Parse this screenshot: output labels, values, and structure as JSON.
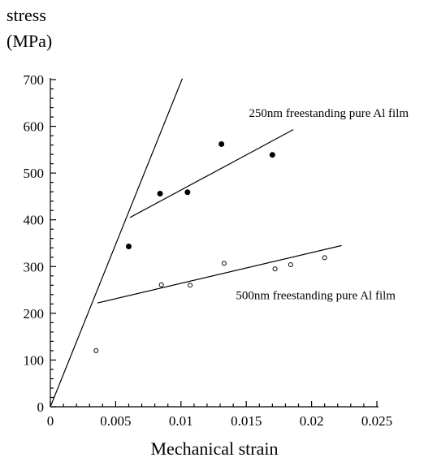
{
  "chart_data": {
    "type": "scatter",
    "xlabel": "Mechanical strain",
    "ylabel_line1": "stress",
    "ylabel_line2": "(MPa)",
    "xlim": [
      0,
      0.025
    ],
    "ylim": [
      0,
      700
    ],
    "x_ticks": [
      {
        "value": 0,
        "label": "0"
      },
      {
        "value": 0.005,
        "label": "0.005"
      },
      {
        "value": 0.01,
        "label": "0.01"
      },
      {
        "value": 0.015,
        "label": "0.015"
      },
      {
        "value": 0.02,
        "label": "0.02"
      },
      {
        "value": 0.025,
        "label": "0.025"
      }
    ],
    "y_ticks": [
      {
        "value": 0,
        "label": "0"
      },
      {
        "value": 100,
        "label": "100"
      },
      {
        "value": 200,
        "label": "200"
      },
      {
        "value": 300,
        "label": "300"
      },
      {
        "value": 400,
        "label": "400"
      },
      {
        "value": 500,
        "label": "500"
      },
      {
        "value": 600,
        "label": "600"
      },
      {
        "value": 700,
        "label": "700"
      }
    ],
    "grid": false,
    "series": [
      {
        "name": "250nm freestanding pure Al film",
        "marker": "filled-circle",
        "points": [
          {
            "x": 0.006,
            "y": 343
          },
          {
            "x": 0.0084,
            "y": 456
          },
          {
            "x": 0.0105,
            "y": 459
          },
          {
            "x": 0.0131,
            "y": 562
          },
          {
            "x": 0.017,
            "y": 539
          }
        ],
        "fit_line": {
          "x": [
            0.0061,
            0.0186
          ],
          "y": [
            405,
            593
          ]
        }
      },
      {
        "name": "500nm freestanding pure Al film",
        "marker": "open-circle",
        "points": [
          {
            "x": 0.0035,
            "y": 120
          },
          {
            "x": 0.0085,
            "y": 261
          },
          {
            "x": 0.0107,
            "y": 260
          },
          {
            "x": 0.0133,
            "y": 307
          },
          {
            "x": 0.0172,
            "y": 295
          },
          {
            "x": 0.0184,
            "y": 304
          },
          {
            "x": 0.021,
            "y": 319
          }
        ],
        "fit_line": {
          "x": [
            0.0036,
            0.0223
          ],
          "y": [
            222,
            345
          ]
        }
      }
    ],
    "elastic_line": {
      "x": [
        0,
        0.0101
      ],
      "y": [
        0,
        702
      ]
    },
    "annotations": [
      {
        "text": "250nm freestanding pure Al film",
        "x": 0.0152,
        "y": 620
      },
      {
        "text": "500nm freestanding pure Al film",
        "x": 0.0142,
        "y": 230
      }
    ]
  }
}
